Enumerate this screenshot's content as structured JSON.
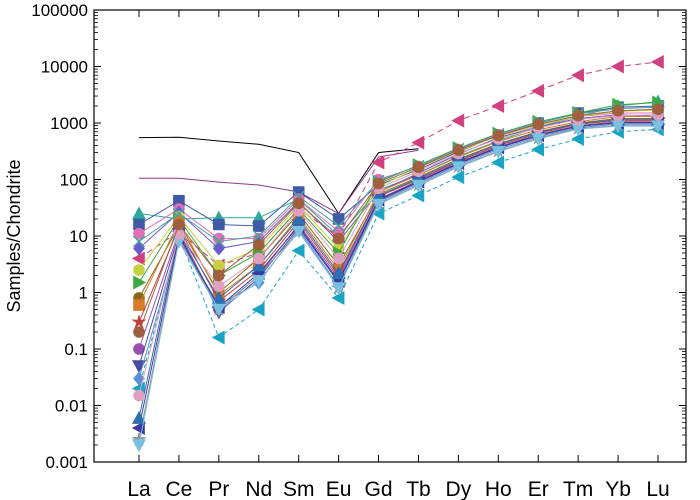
{
  "chart_data": {
    "type": "line",
    "ylabel": "Samples/Chondrite",
    "y_scale": "log",
    "ylim": [
      0.001,
      100000
    ],
    "y_ticks": [
      "0.001",
      "0.01",
      "0.1",
      "1",
      "10",
      "100",
      "1000",
      "10000",
      "100000"
    ],
    "categories": [
      "La",
      "Ce",
      "Pr",
      "Nd",
      "Sm",
      "Eu",
      "Gd",
      "Tb",
      "Dy",
      "Ho",
      "Er",
      "Tm",
      "Yb",
      "Lu"
    ],
    "legend": "none",
    "grid": false,
    "series": [
      {
        "color": "#000000",
        "marker": "none",
        "dash": "none",
        "values": [
          550,
          560,
          480,
          420,
          300,
          25,
          300,
          350,
          null,
          null,
          null,
          null,
          null,
          null
        ]
      },
      {
        "color": "#8b3a8b",
        "marker": "none",
        "dash": "none",
        "values": [
          105,
          105,
          90,
          80,
          60,
          25,
          250,
          330,
          null,
          null,
          null,
          null,
          null,
          null
        ]
      },
      {
        "color": "#d0407e",
        "marker": "triangle-left",
        "dash": "6,4",
        "values": [
          4,
          12,
          3,
          5,
          30,
          10,
          200,
          450,
          1100,
          2000,
          3700,
          7000,
          10000,
          12000
        ]
      },
      {
        "color": "#1aa4c4",
        "marker": "triangle-left",
        "dash": "4,3",
        "values": [
          0.02,
          10,
          0.16,
          0.5,
          5.5,
          0.8,
          25,
          52,
          110,
          200,
          340,
          520,
          700,
          770
        ]
      },
      {
        "color": "#2ea89a",
        "marker": "triangle-up",
        "dash": "none",
        "values": [
          25,
          20,
          21,
          21,
          45,
          10,
          65,
          120,
          260,
          480,
          850,
          1300,
          2000,
          2400
        ]
      },
      {
        "color": "#3f5aa6",
        "marker": "square",
        "dash": "none",
        "values": [
          16,
          42,
          16,
          15,
          60,
          20,
          80,
          150,
          310,
          600,
          1000,
          1500,
          1900,
          2000
        ]
      },
      {
        "color": "#e070b8",
        "marker": "circle",
        "dash": "none",
        "values": [
          11,
          30,
          9,
          9,
          45,
          12,
          100,
          170,
          340,
          620,
          950,
          1300,
          1500,
          1500
        ]
      },
      {
        "color": "#6a5acd",
        "marker": "diamond",
        "dash": "none",
        "values": [
          6,
          26,
          6,
          8,
          40,
          8,
          60,
          130,
          280,
          550,
          850,
          1200,
          1400,
          1300
        ]
      },
      {
        "color": "#c8d040",
        "marker": "circle",
        "dash": "none",
        "values": [
          2.5,
          22,
          3,
          6,
          35,
          6,
          75,
          160,
          320,
          580,
          900,
          1300,
          1600,
          1700
        ]
      },
      {
        "color": "#40a840",
        "marker": "triangle-right",
        "dash": "none",
        "values": [
          1.5,
          20,
          2,
          5,
          30,
          5,
          90,
          180,
          360,
          650,
          1050,
          1500,
          2100,
          2300
        ]
      },
      {
        "color": "#8b6914",
        "marker": "circle",
        "dash": "none",
        "values": [
          0.8,
          15,
          1,
          4,
          25,
          3,
          55,
          110,
          230,
          430,
          700,
          1000,
          1200,
          1200
        ]
      },
      {
        "color": "#d87a2a",
        "marker": "square",
        "dash": "none",
        "values": [
          0.6,
          18,
          0.9,
          3,
          22,
          2.5,
          60,
          120,
          250,
          470,
          760,
          1050,
          1300,
          1300
        ]
      },
      {
        "color": "#c04040",
        "marker": "star",
        "dash": "none",
        "values": [
          0.3,
          14,
          0.7,
          2.5,
          18,
          2,
          50,
          100,
          210,
          400,
          650,
          950,
          1100,
          1100
        ]
      },
      {
        "color": "#9a50b0",
        "marker": "circle",
        "dash": "none",
        "values": [
          0.1,
          12,
          0.5,
          2,
          16,
          1.8,
          45,
          95,
          200,
          380,
          620,
          900,
          1050,
          1050
        ]
      },
      {
        "color": "#4a4aa0",
        "marker": "triangle-down",
        "dash": "none",
        "values": [
          0.05,
          11,
          0.45,
          1.8,
          14,
          1.5,
          42,
          90,
          190,
          360,
          600,
          870,
          1000,
          1000
        ]
      },
      {
        "color": "#5b8dd9",
        "marker": "diamond",
        "dash": "none",
        "values": [
          0.03,
          9,
          0.6,
          1.5,
          13,
          1.3,
          40,
          85,
          180,
          340,
          570,
          830,
          950,
          950
        ]
      },
      {
        "color": "#909090",
        "marker": "star",
        "dash": "none",
        "values": [
          0.0025,
          9,
          0.5,
          2,
          12,
          1.2,
          38,
          80,
          170,
          320,
          540,
          800,
          900,
          900
        ]
      },
      {
        "color": "#3a3aa0",
        "marker": "triangle-left",
        "dash": "none",
        "values": [
          0.004,
          10,
          0.55,
          2.2,
          15,
          1.6,
          44,
          92,
          195,
          370,
          610,
          880,
          1020,
          1020
        ]
      },
      {
        "color": "#2d6fb0",
        "marker": "triangle-up",
        "dash": "none",
        "values": [
          0.006,
          12,
          0.8,
          3,
          20,
          2.2,
          52,
          105,
          220,
          420,
          680,
          980,
          1150,
          1150
        ]
      },
      {
        "color": "#7ac0e0",
        "marker": "triangle-down",
        "dash": "none",
        "values": [
          0.002,
          8,
          0.5,
          1.6,
          12,
          1.2,
          36,
          78,
          165,
          310,
          520,
          780,
          880,
          880
        ]
      },
      {
        "color": "#e0a0c0",
        "marker": "circle",
        "dash": "none",
        "values": [
          0.015,
          11,
          1.3,
          4,
          28,
          4,
          70,
          140,
          290,
          520,
          820,
          1150,
          1350,
          1400
        ]
      },
      {
        "color": "#50a0a0",
        "marker": "x",
        "dash": "none",
        "values": [
          8,
          25,
          8,
          10,
          50,
          15,
          95,
          175,
          350,
          640,
          1000,
          1450,
          1800,
          1900
        ]
      },
      {
        "color": "#a06040",
        "marker": "circle",
        "dash": "none",
        "values": [
          0.2,
          16,
          2,
          7,
          38,
          9,
          85,
          165,
          330,
          600,
          950,
          1350,
          1650,
          1750
        ]
      }
    ]
  }
}
